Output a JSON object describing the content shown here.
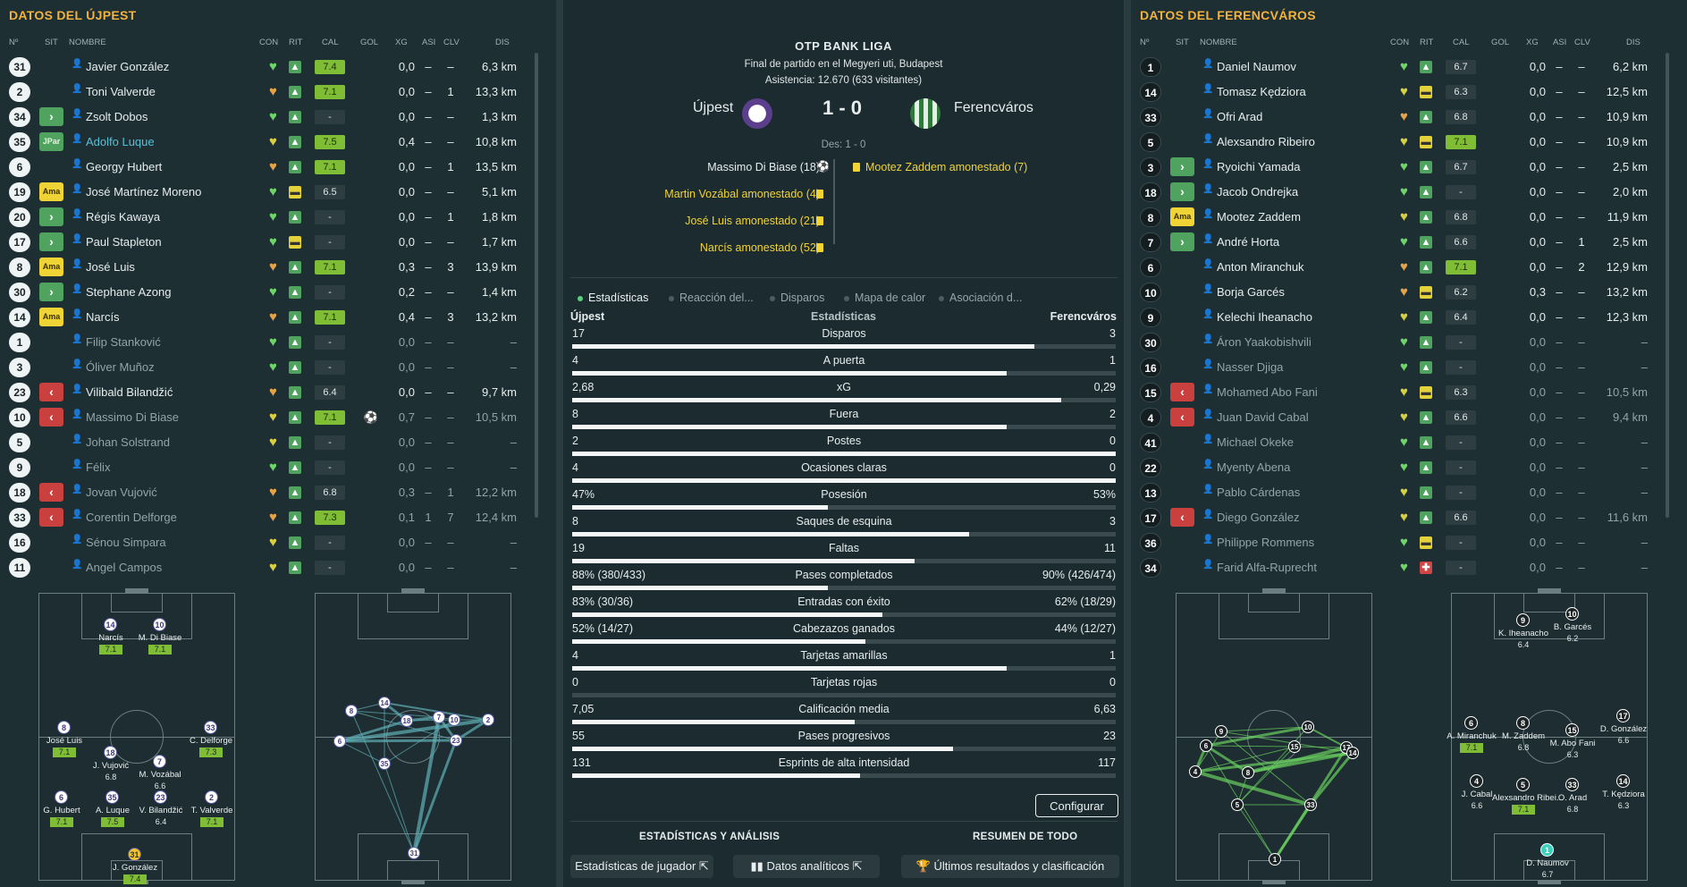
{
  "left_panel": {
    "title": "DATOS DEL ÚJPEST",
    "headers": {
      "num": "Nº",
      "sit": "SIT",
      "name": "NOMBRE",
      "con": "CON",
      "rit": "RIT",
      "cal": "CAL",
      "gol": "GOL",
      "xg": "XG",
      "asi": "ASI",
      "clv": "CLV",
      "dis": "DIS"
    },
    "players": [
      {
        "num": "31",
        "sit": "",
        "name": "Javier González",
        "con": "green",
        "rit": "green",
        "cal": "7.4",
        "calg": true,
        "gol": "",
        "xg": "0,0",
        "asi": "–",
        "clv": "–",
        "dis": "6,3 km"
      },
      {
        "num": "2",
        "sit": "",
        "name": "Toni Valverde",
        "con": "orange",
        "rit": "green",
        "cal": "7.1",
        "calg": true,
        "gol": "",
        "xg": "0,0",
        "asi": "–",
        "clv": "1",
        "dis": "13,3 km"
      },
      {
        "num": "34",
        "sit": "in",
        "name": "Zsolt Dobos",
        "con": "green",
        "rit": "green",
        "cal": "-",
        "calg": false,
        "gol": "",
        "xg": "0,0",
        "asi": "–",
        "clv": "–",
        "dis": "1,3 km"
      },
      {
        "num": "35",
        "sit": "JPar",
        "name": "Adolfo Luque",
        "con": "yellow",
        "rit": "green",
        "cal": "7.5",
        "calg": true,
        "gol": "",
        "xg": "0,4",
        "asi": "–",
        "clv": "–",
        "dis": "10,8 km",
        "hl": true
      },
      {
        "num": "6",
        "sit": "",
        "name": "Georgy Hubert",
        "con": "orange",
        "rit": "green",
        "cal": "7.1",
        "calg": true,
        "gol": "",
        "xg": "0,0",
        "asi": "–",
        "clv": "1",
        "dis": "13,5 km"
      },
      {
        "num": "19",
        "sit": "Ama",
        "name": "José Martínez Moreno",
        "con": "green",
        "rit": "yellow",
        "cal": "6.5",
        "calg": false,
        "gol": "",
        "xg": "0,0",
        "asi": "–",
        "clv": "–",
        "dis": "5,1 km"
      },
      {
        "num": "20",
        "sit": "in",
        "name": "Régis Kawaya",
        "con": "green",
        "rit": "green",
        "cal": "-",
        "calg": false,
        "gol": "",
        "xg": "0,0",
        "asi": "–",
        "clv": "1",
        "dis": "1,8 km"
      },
      {
        "num": "17",
        "sit": "in",
        "name": "Paul Stapleton",
        "con": "green",
        "rit": "yellow",
        "cal": "-",
        "calg": false,
        "gol": "",
        "xg": "0,0",
        "asi": "–",
        "clv": "–",
        "dis": "1,7 km"
      },
      {
        "num": "8",
        "sit": "Ama",
        "name": "José Luis",
        "con": "orange",
        "rit": "green",
        "cal": "7.1",
        "calg": true,
        "gol": "",
        "xg": "0,3",
        "asi": "–",
        "clv": "3",
        "dis": "13,9 km"
      },
      {
        "num": "30",
        "sit": "in",
        "name": "Stephane Azong",
        "con": "green",
        "rit": "green",
        "cal": "-",
        "calg": false,
        "gol": "",
        "xg": "0,2",
        "asi": "–",
        "clv": "–",
        "dis": "1,4 km"
      },
      {
        "num": "14",
        "sit": "Ama",
        "name": "Narcís",
        "con": "orange",
        "rit": "green",
        "cal": "7.1",
        "calg": true,
        "gol": "",
        "xg": "0,4",
        "asi": "–",
        "clv": "3",
        "dis": "13,2 km"
      },
      {
        "num": "1",
        "sit": "",
        "name": "Filip Stanković",
        "con": "green",
        "rit": "green",
        "cal": "-",
        "calg": false,
        "gol": "",
        "xg": "0,0",
        "asi": "–",
        "clv": "–",
        "dis": "–",
        "dim": true
      },
      {
        "num": "3",
        "sit": "",
        "name": "Óliver Muñoz",
        "con": "green",
        "rit": "green",
        "cal": "-",
        "calg": false,
        "gol": "",
        "xg": "0,0",
        "asi": "–",
        "clv": "–",
        "dis": "–",
        "dim": true
      },
      {
        "num": "23",
        "sit": "out",
        "name": "Vilibald Bilandžić",
        "con": "orange",
        "rit": "green",
        "cal": "6.4",
        "calg": false,
        "gol": "",
        "xg": "0,0",
        "asi": "–",
        "clv": "–",
        "dis": "9,7 km"
      },
      {
        "num": "10",
        "sit": "out",
        "name": "Massimo Di Biase",
        "con": "yellow",
        "rit": "green",
        "cal": "7.1",
        "calg": true,
        "gol": "⚽",
        "xg": "0,7",
        "asi": "–",
        "clv": "–",
        "dis": "10,5 km",
        "dim": true
      },
      {
        "num": "5",
        "sit": "",
        "name": "Johan Solstrand",
        "con": "yellow",
        "rit": "green",
        "cal": "-",
        "calg": false,
        "gol": "",
        "xg": "0,0",
        "asi": "–",
        "clv": "–",
        "dis": "–",
        "dim": true
      },
      {
        "num": "9",
        "sit": "",
        "name": "Félix",
        "con": "green",
        "rit": "green",
        "cal": "-",
        "calg": false,
        "gol": "",
        "xg": "0,0",
        "asi": "–",
        "clv": "–",
        "dis": "–",
        "dim": true
      },
      {
        "num": "18",
        "sit": "out",
        "name": "Jovan Vujović",
        "con": "orange",
        "rit": "green",
        "cal": "6.8",
        "calg": false,
        "gol": "",
        "xg": "0,3",
        "asi": "–",
        "clv": "1",
        "dis": "12,2 km",
        "dim": true
      },
      {
        "num": "33",
        "sit": "out",
        "name": "Corentin Delforge",
        "con": "orange",
        "rit": "green",
        "cal": "7.3",
        "calg": true,
        "gol": "",
        "xg": "0,1",
        "asi": "1",
        "clv": "7",
        "dis": "12,4 km",
        "dim": true
      },
      {
        "num": "16",
        "sit": "",
        "name": "Sénou Simpara",
        "con": "yellow",
        "rit": "green",
        "cal": "-",
        "calg": false,
        "gol": "",
        "xg": "0,0",
        "asi": "–",
        "clv": "–",
        "dis": "–",
        "dim": true
      },
      {
        "num": "11",
        "sit": "",
        "name": "Angel Campos",
        "con": "yellow",
        "rit": "green",
        "cal": "-",
        "calg": false,
        "gol": "",
        "xg": "0,0",
        "asi": "–",
        "clv": "–",
        "dis": "–",
        "dim": true
      }
    ],
    "formation": [
      {
        "n": "14",
        "name": "Narcís",
        "r": "7.1",
        "g": true
      },
      {
        "n": "10",
        "name": "M. Di Biase",
        "r": "7.1",
        "g": true
      },
      {
        "n": "8",
        "name": "José Luis",
        "r": "7.1",
        "g": true
      },
      {
        "n": "33",
        "name": "C. Delforge",
        "r": "7.3",
        "g": true
      },
      {
        "n": "18",
        "name": "J. Vujović",
        "r": "6.8",
        "g": false
      },
      {
        "n": "7",
        "name": "M. Vozábal",
        "r": "6.6",
        "g": false
      },
      {
        "n": "6",
        "name": "G. Hubert",
        "r": "7.1",
        "g": true
      },
      {
        "n": "35",
        "name": "A. Luque",
        "r": "7.5",
        "g": true
      },
      {
        "n": "23",
        "name": "V. Bilandžić",
        "r": "6.4",
        "g": false
      },
      {
        "n": "2",
        "name": "T. Valverde",
        "r": "7.1",
        "g": true
      },
      {
        "n": "31",
        "name": "J. González",
        "r": "7.4",
        "g": true
      }
    ],
    "passmap": [
      "8",
      "14",
      "18",
      "7",
      "10",
      "2",
      "23",
      "6",
      "35",
      "31"
    ]
  },
  "right_panel": {
    "title": "DATOS DEL FERENCVÁROS",
    "headers": {
      "num": "Nº",
      "sit": "SIT",
      "name": "NOMBRE",
      "con": "CON",
      "rit": "RIT",
      "cal": "CAL",
      "gol": "GOL",
      "xg": "XG",
      "asi": "ASI",
      "clv": "CLV",
      "dis": "DIS"
    },
    "players": [
      {
        "num": "1",
        "sit": "",
        "name": "Daniel Naumov",
        "con": "green",
        "rit": "green",
        "cal": "6.7",
        "calg": false,
        "xg": "0,0",
        "asi": "–",
        "clv": "–",
        "dis": "6,2 km"
      },
      {
        "num": "14",
        "sit": "",
        "name": "Tomasz Kędziora",
        "con": "yellow",
        "rit": "yellow",
        "cal": "6.3",
        "calg": false,
        "xg": "0,0",
        "asi": "–",
        "clv": "–",
        "dis": "12,5 km"
      },
      {
        "num": "33",
        "sit": "",
        "name": "Ofri Arad",
        "con": "orange",
        "rit": "green",
        "cal": "6.8",
        "calg": false,
        "xg": "0,0",
        "asi": "–",
        "clv": "–",
        "dis": "10,9 km"
      },
      {
        "num": "5",
        "sit": "",
        "name": "Alexsandro Ribeiro",
        "con": "yellow",
        "rit": "yellow",
        "cal": "7.1",
        "calg": true,
        "xg": "0,0",
        "asi": "–",
        "clv": "–",
        "dis": "10,9 km"
      },
      {
        "num": "3",
        "sit": "in",
        "name": "Ryoichi Yamada",
        "con": "green",
        "rit": "green",
        "cal": "6.7",
        "calg": false,
        "xg": "0,0",
        "asi": "–",
        "clv": "–",
        "dis": "2,5 km"
      },
      {
        "num": "18",
        "sit": "in",
        "name": "Jacob Ondrejka",
        "con": "green",
        "rit": "green",
        "cal": "-",
        "calg": false,
        "xg": "0,0",
        "asi": "–",
        "clv": "–",
        "dis": "2,0 km"
      },
      {
        "num": "8",
        "sit": "Ama",
        "name": "Mootez Zaddem",
        "con": "yellow",
        "rit": "green",
        "cal": "6.8",
        "calg": false,
        "xg": "0,0",
        "asi": "–",
        "clv": "–",
        "dis": "11,9 km"
      },
      {
        "num": "7",
        "sit": "in",
        "name": "André Horta",
        "con": "green",
        "rit": "green",
        "cal": "6.6",
        "calg": false,
        "xg": "0,0",
        "asi": "–",
        "clv": "1",
        "dis": "2,5 km"
      },
      {
        "num": "6",
        "sit": "",
        "name": "Anton Miranchuk",
        "con": "orange",
        "rit": "green",
        "cal": "7.1",
        "calg": true,
        "xg": "0,0",
        "asi": "–",
        "clv": "2",
        "dis": "12,9 km"
      },
      {
        "num": "10",
        "sit": "",
        "name": "Borja Garcés",
        "con": "orange",
        "rit": "yellow",
        "cal": "6.2",
        "calg": false,
        "xg": "0,3",
        "asi": "–",
        "clv": "–",
        "dis": "13,2 km"
      },
      {
        "num": "9",
        "sit": "",
        "name": "Kelechi Iheanacho",
        "con": "yellow",
        "rit": "green",
        "cal": "6.4",
        "calg": false,
        "xg": "0,0",
        "asi": "–",
        "clv": "–",
        "dis": "12,3 km"
      },
      {
        "num": "30",
        "sit": "",
        "name": "Áron Yaakobishvili",
        "con": "green",
        "rit": "green",
        "cal": "-",
        "calg": false,
        "xg": "0,0",
        "asi": "–",
        "clv": "–",
        "dis": "–",
        "dim": true
      },
      {
        "num": "16",
        "sit": "",
        "name": "Nasser Djiga",
        "con": "green",
        "rit": "green",
        "cal": "-",
        "calg": false,
        "xg": "0,0",
        "asi": "–",
        "clv": "–",
        "dis": "–",
        "dim": true
      },
      {
        "num": "15",
        "sit": "out",
        "name": "Mohamed Abo Fani",
        "con": "yellow",
        "rit": "yellow",
        "cal": "6.3",
        "calg": false,
        "xg": "0,0",
        "asi": "–",
        "clv": "–",
        "dis": "10,5 km",
        "dim": true
      },
      {
        "num": "4",
        "sit": "out",
        "name": "Juan David Cabal",
        "con": "yellow",
        "rit": "green",
        "cal": "6.6",
        "calg": false,
        "xg": "0,0",
        "asi": "–",
        "clv": "–",
        "dis": "9,4 km",
        "dim": true
      },
      {
        "num": "41",
        "sit": "",
        "name": "Michael Okeke",
        "con": "green",
        "rit": "green",
        "cal": "-",
        "calg": false,
        "xg": "0,0",
        "asi": "–",
        "clv": "–",
        "dis": "–",
        "dim": true
      },
      {
        "num": "22",
        "sit": "",
        "name": "Myenty Abena",
        "con": "green",
        "rit": "green",
        "cal": "-",
        "calg": false,
        "xg": "0,0",
        "asi": "–",
        "clv": "–",
        "dis": "–",
        "dim": true
      },
      {
        "num": "13",
        "sit": "",
        "name": "Pablo Cárdenas",
        "con": "yellow",
        "rit": "green",
        "cal": "-",
        "calg": false,
        "xg": "0,0",
        "asi": "–",
        "clv": "–",
        "dis": "–",
        "dim": true
      },
      {
        "num": "17",
        "sit": "out",
        "name": "Diego González",
        "con": "yellow",
        "rit": "green",
        "cal": "6.6",
        "calg": false,
        "xg": "0,0",
        "asi": "–",
        "clv": "–",
        "dis": "11,6 km",
        "dim": true
      },
      {
        "num": "36",
        "sit": "",
        "name": "Philippe Rommens",
        "con": "green",
        "rit": "yellow",
        "cal": "-",
        "calg": false,
        "xg": "0,0",
        "asi": "–",
        "clv": "–",
        "dis": "–",
        "dim": true
      },
      {
        "num": "34",
        "sit": "",
        "name": "Farid Alfa-Ruprecht",
        "con": "green",
        "rit": "red",
        "cal": "-",
        "calg": false,
        "xg": "0,0",
        "asi": "–",
        "clv": "–",
        "dis": "–",
        "dim": true
      }
    ],
    "formation": [
      {
        "n": "9",
        "name": "K. Iheanacho",
        "r": "6.4",
        "g": false
      },
      {
        "n": "10",
        "name": "B. Garcés",
        "r": "6.2",
        "g": false
      },
      {
        "n": "6",
        "name": "A. Miranchuk",
        "r": "7.1",
        "g": true
      },
      {
        "n": "8",
        "name": "M. Zaddem",
        "r": "6.8",
        "g": false
      },
      {
        "n": "15",
        "name": "M. Abo Fani",
        "r": "6.3",
        "g": false
      },
      {
        "n": "17",
        "name": "D. González",
        "r": "6.6",
        "g": false
      },
      {
        "n": "4",
        "name": "J. Cabal",
        "r": "6.6",
        "g": false
      },
      {
        "n": "5",
        "name": "Alexsandro Ribei...",
        "r": "7.1",
        "g": true
      },
      {
        "n": "33",
        "name": "O. Arad",
        "r": "6.8",
        "g": false
      },
      {
        "n": "14",
        "name": "T. Kędziora",
        "r": "6.3",
        "g": false
      },
      {
        "n": "1",
        "name": "D. Naumov",
        "r": "6.7",
        "g": false
      }
    ],
    "passmap": [
      "9",
      "10",
      "6",
      "4",
      "15",
      "17",
      "14",
      "8",
      "5",
      "33",
      "1"
    ]
  },
  "center": {
    "league": "OTP BANK LIGA",
    "subtitle": "Final de partido en el Megyeri uti, Budapest",
    "attendance": "Asistencia: 12.670 (633 visitantes)",
    "home": "Újpest",
    "away": "Ferencváros",
    "score": "1 - 0",
    "extra": "Des: 1 - 0",
    "home_crest_color": "#5b3f8c",
    "away_crest_color": "#2f7a3a",
    "home_events": [
      {
        "text": "Massimo Di Biase (18)",
        "type": "goal"
      },
      {
        "text": "Martin Vozábal amonestado (4)",
        "type": "card"
      },
      {
        "text": "José Luis amonestado (21)",
        "type": "card"
      },
      {
        "text": "Narcís amonestado (52)",
        "type": "card"
      }
    ],
    "away_events": [
      {
        "text": "Mootez Zaddem amonestado (7)",
        "type": "card"
      }
    ],
    "tabs": [
      "Estadísticas",
      "Reacción del...",
      "Disparos",
      "Mapa de calor",
      "Asociación d..."
    ],
    "stats_header": {
      "home": "Újpest",
      "mid": "Estadísticas",
      "away": "Ferencváros"
    },
    "stats": [
      {
        "label": "Disparos",
        "home": "17",
        "away": "3",
        "share": 0.85
      },
      {
        "label": "A puerta",
        "home": "4",
        "away": "1",
        "share": 0.8
      },
      {
        "label": "xG",
        "home": "2,68",
        "away": "0,29",
        "share": 0.9
      },
      {
        "label": "Fuera",
        "home": "8",
        "away": "2",
        "share": 0.8
      },
      {
        "label": "Postes",
        "home": "2",
        "away": "0",
        "share": 1.0
      },
      {
        "label": "Ocasiones claras",
        "home": "4",
        "away": "0",
        "share": 1.0
      },
      {
        "label": "Posesión",
        "home": "47%",
        "away": "53%",
        "share": 0.47
      },
      {
        "label": "Saques de esquina",
        "home": "8",
        "away": "3",
        "share": 0.73
      },
      {
        "label": "Faltas",
        "home": "19",
        "away": "11",
        "share": 0.63
      },
      {
        "label": "Pases completados",
        "home": "88% (380/433)",
        "away": "90% (426/474)",
        "share": 0.47
      },
      {
        "label": "Entradas con éxito",
        "home": "83% (30/36)",
        "away": "62% (18/29)",
        "share": 0.57
      },
      {
        "label": "Cabezazos ganados",
        "home": "52% (14/27)",
        "away": "44% (12/27)",
        "share": 0.54
      },
      {
        "label": "Tarjetas amarillas",
        "home": "4",
        "away": "1",
        "share": 0.8
      },
      {
        "label": "Tarjetas rojas",
        "home": "0",
        "away": "0",
        "share": 0.0
      },
      {
        "label": "Calificación media",
        "home": "7,05",
        "away": "6,63",
        "share": 0.52
      },
      {
        "label": "Pases progresivos",
        "home": "55",
        "away": "23",
        "share": 0.7
      },
      {
        "label": "Esprints de alta intensidad",
        "home": "131",
        "away": "117",
        "share": 0.53
      }
    ],
    "configure_label": "Configurar",
    "footer_left_title": "ESTADÍSTICAS Y ANÁLISIS",
    "footer_right_title": "RESUMEN DE TODO",
    "btn_player_stats": "Estadísticas de jugador",
    "btn_analytics": "Datos analíticos",
    "btn_results": "Últimos resultados y clasificación"
  }
}
